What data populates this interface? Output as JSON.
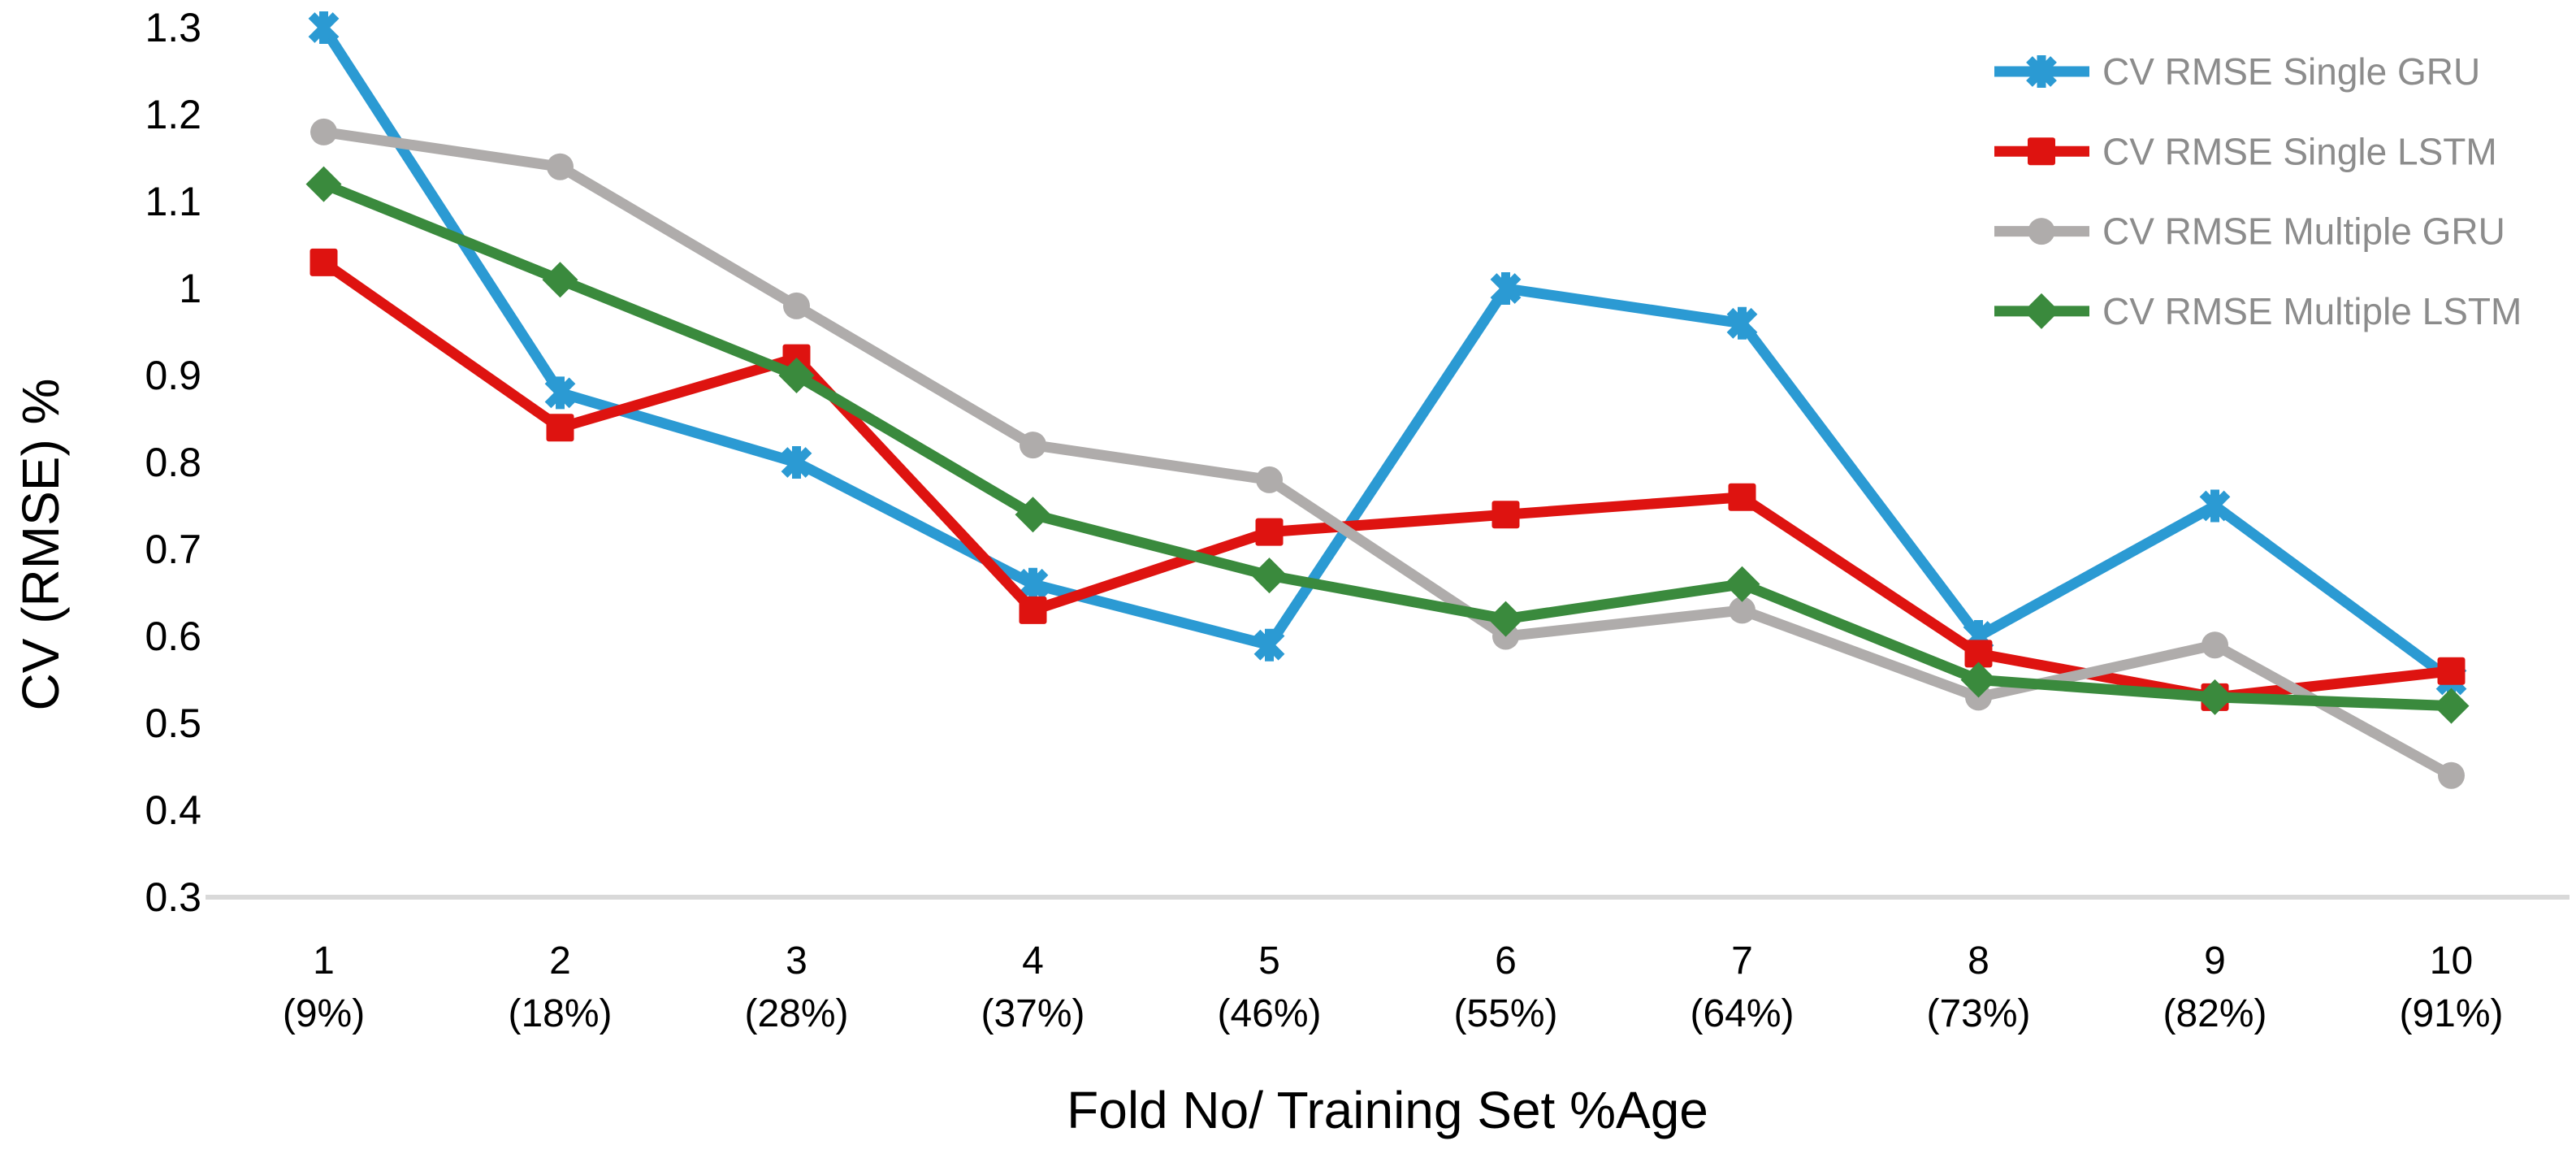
{
  "chart_data": {
    "type": "line",
    "title": "",
    "xlabel": "Fold No/ Training Set %Age",
    "ylabel": "CV (RMSE) %",
    "ylim": [
      0.3,
      1.3
    ],
    "ytick_step": 0.1,
    "ytick_labels": [
      "1.3",
      "1.2",
      "1.1",
      "1",
      "0.9",
      "0.8",
      "0.7",
      "0.6",
      "0.5",
      "0.4",
      "0.3"
    ],
    "grid": "none (only bottom axis line visible)",
    "axis_line_color": "#d9d9d9",
    "legend_position": "top-right",
    "legend_text_color": "#8c8c8c",
    "categories": [
      {
        "label": "1",
        "sub": "(9%)"
      },
      {
        "label": "2",
        "sub": "(18%)"
      },
      {
        "label": "3",
        "sub": "(28%)"
      },
      {
        "label": "4",
        "sub": "(37%)"
      },
      {
        "label": "5",
        "sub": "(46%)"
      },
      {
        "label": "6",
        "sub": "(55%)"
      },
      {
        "label": "7",
        "sub": "(64%)"
      },
      {
        "label": "8",
        "sub": "(73%)"
      },
      {
        "label": "9",
        "sub": "(82%)"
      },
      {
        "label": "10",
        "sub": "(91%)"
      }
    ],
    "series": [
      {
        "name": "CV RMSE Single GRU",
        "color": "#2b9ad3",
        "marker": "star",
        "values": [
          1.3,
          0.88,
          0.8,
          0.66,
          0.59,
          1.0,
          0.96,
          0.6,
          0.75,
          0.55
        ]
      },
      {
        "name": "CV RMSE Single LSTM",
        "color": "#de1310",
        "marker": "square",
        "values": [
          1.03,
          0.84,
          0.92,
          0.63,
          0.72,
          0.74,
          0.76,
          0.58,
          0.53,
          0.56
        ]
      },
      {
        "name": "CV RMSE Multiple GRU",
        "color": "#afacab",
        "marker": "circle",
        "values": [
          1.18,
          1.14,
          0.98,
          0.82,
          0.78,
          0.6,
          0.63,
          0.53,
          0.59,
          0.44
        ]
      },
      {
        "name": "CV RMSE Multiple LSTM",
        "color": "#3a8a3d",
        "marker": "diamond",
        "values": [
          1.12,
          1.01,
          0.9,
          0.74,
          0.67,
          0.62,
          0.66,
          0.55,
          0.53,
          0.52
        ]
      }
    ]
  }
}
